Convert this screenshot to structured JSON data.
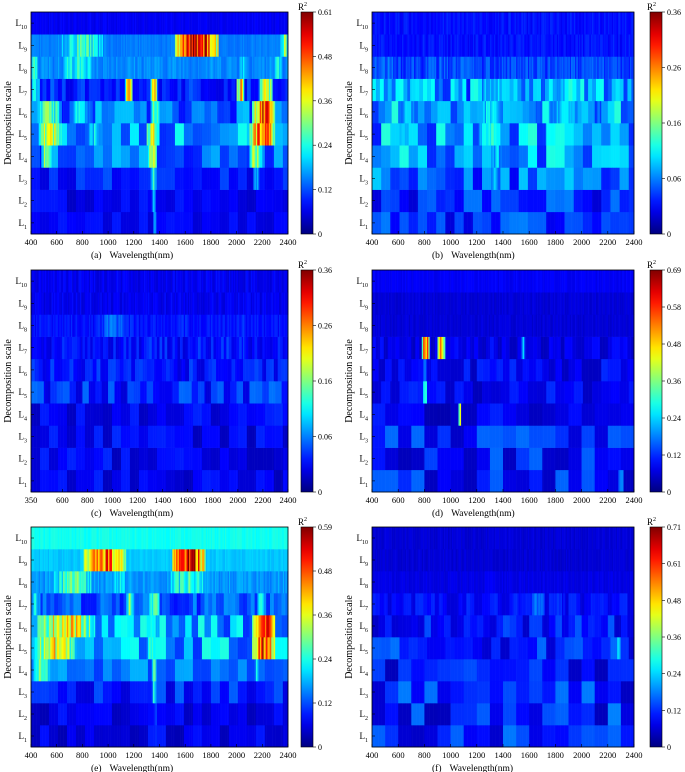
{
  "figure": {
    "y_axis_label": "Decomposition scale",
    "x_axis_label": "Wavelength(nm)",
    "colorbar_label": "R",
    "colorbar_label_sup": "2",
    "scale_label_prefix": "L",
    "scale_labels": [
      "1",
      "2",
      "3",
      "4",
      "5",
      "6",
      "7",
      "8",
      "9",
      "10"
    ]
  },
  "chart_data": [
    {
      "id": "a",
      "type": "heatmap",
      "caption": "(a)",
      "xlabel": "Wavelength(nm)",
      "ylabel": "Decomposition scale",
      "xlim": [
        400,
        2400
      ],
      "x_ticks": [
        400,
        600,
        800,
        1000,
        1200,
        1400,
        1600,
        1800,
        2000,
        2200,
        2400
      ],
      "rows": [
        "L1",
        "L2",
        "L3",
        "L4",
        "L5",
        "L6",
        "L7",
        "L8",
        "L9",
        "L10"
      ],
      "colorbar_ticks": [
        "0",
        "0.12",
        "0.24",
        "0.36",
        "0.48",
        "0.61"
      ],
      "zmax": 0.61,
      "rows_data": [
        {
          "base": 0.05,
          "features": [
            [
              1355,
              1375,
              0.25
            ]
          ],
          "noise": 0.02,
          "stripes": 3
        },
        {
          "base": 0.04,
          "features": [
            [
              1340,
              1370,
              0.2
            ]
          ],
          "noise": 0.03,
          "stripes": 3
        },
        {
          "base": 0.05,
          "features": [
            [
              1330,
              1380,
              0.26
            ],
            [
              2130,
              2180,
              0.18
            ]
          ],
          "noise": 0.04,
          "stripes": 3
        },
        {
          "base": 0.08,
          "features": [
            [
              480,
              560,
              0.3
            ],
            [
              1310,
              1380,
              0.34
            ],
            [
              2100,
              2200,
              0.32
            ]
          ],
          "noise": 0.06,
          "stripes": 3
        },
        {
          "base": 0.1,
          "features": [
            [
              460,
              640,
              0.36
            ],
            [
              840,
              960,
              0.22
            ],
            [
              1300,
              1400,
              0.38
            ],
            [
              2100,
              2300,
              0.5
            ]
          ],
          "noise": 0.07,
          "stripes": 3
        },
        {
          "base": 0.08,
          "features": [
            [
              450,
              640,
              0.28
            ],
            [
              700,
              880,
              0.22
            ],
            [
              1330,
              1400,
              0.3
            ],
            [
              2120,
              2300,
              0.48
            ]
          ],
          "noise": 0.06,
          "stripes": 4
        },
        {
          "base": 0.06,
          "features": [
            [
              400,
              470,
              0.22
            ],
            [
              1130,
              1190,
              0.38
            ],
            [
              1330,
              1380,
              0.45
            ],
            [
              2000,
              2060,
              0.4
            ],
            [
              2180,
              2280,
              0.36
            ]
          ],
          "noise": 0.04,
          "stripes": 6
        },
        {
          "base": 0.14,
          "features": [
            [
              400,
              460,
              0.24
            ],
            [
              600,
              920,
              0.24
            ],
            [
              2000,
              2100,
              0.2
            ],
            [
              2280,
              2360,
              0.22
            ]
          ],
          "noise": 0.02,
          "stripes": 20
        },
        {
          "base": 0.14,
          "features": [
            [
              600,
              1000,
              0.26
            ],
            [
              1520,
              1860,
              0.58
            ],
            [
              2340,
              2400,
              0.3
            ]
          ],
          "noise": 0.01,
          "stripes": 40
        },
        {
          "base": 0.06,
          "features": [],
          "noise": 0.01,
          "stripes": 60
        }
      ]
    },
    {
      "id": "b",
      "type": "heatmap",
      "caption": "(b)",
      "xlabel": "Wavelength(nm)",
      "ylabel": "Decomposition scale",
      "xlim": [
        400,
        2400
      ],
      "x_ticks": [
        400,
        600,
        800,
        1000,
        1200,
        1400,
        1600,
        1800,
        2000,
        2200,
        2400
      ],
      "rows": [
        "L1",
        "L2",
        "L3",
        "L4",
        "L5",
        "L6",
        "L7",
        "L8",
        "L9",
        "L10"
      ],
      "colorbar_ticks": [
        "0",
        "0.06",
        "0.16",
        "0.26",
        "0.36"
      ],
      "zmax": 0.36,
      "rows_data": [
        {
          "base": 0.03,
          "features": [],
          "noise": 0.03,
          "stripes": 3
        },
        {
          "base": 0.03,
          "features": [],
          "noise": 0.03,
          "stripes": 3
        },
        {
          "base": 0.04,
          "features": [
            [
              1290,
              1400,
              0.1
            ]
          ],
          "noise": 0.04,
          "stripes": 3
        },
        {
          "base": 0.05,
          "features": [
            [
              1290,
              1400,
              0.12
            ]
          ],
          "noise": 0.05,
          "stripes": 3
        },
        {
          "base": 0.05,
          "features": [
            [
              560,
              720,
              0.1
            ],
            [
              1200,
              1400,
              0.14
            ],
            [
              1700,
              1900,
              0.1
            ]
          ],
          "noise": 0.05,
          "stripes": 3
        },
        {
          "base": 0.05,
          "features": [
            [
              560,
              760,
              0.1
            ],
            [
              1200,
              1400,
              0.12
            ],
            [
              1600,
              2200,
              0.1
            ]
          ],
          "noise": 0.05,
          "stripes": 4
        },
        {
          "base": 0.05,
          "features": [
            [
              560,
              880,
              0.1
            ],
            [
              1200,
              1480,
              0.12
            ],
            [
              1680,
              2100,
              0.1
            ]
          ],
          "noise": 0.05,
          "stripes": 8
        },
        {
          "base": 0.05,
          "features": [
            [
              420,
              600,
              0.08
            ],
            [
              1000,
              1240,
              0.07
            ],
            [
              1600,
              2400,
              0.07
            ]
          ],
          "noise": 0.02,
          "stripes": 16
        },
        {
          "base": 0.04,
          "features": [],
          "noise": 0.01,
          "stripes": 40
        },
        {
          "base": 0.04,
          "features": [],
          "noise": 0.01,
          "stripes": 60
        }
      ]
    },
    {
      "id": "c",
      "type": "heatmap",
      "caption": "(c)",
      "xlabel": "Wavelength(nm)",
      "ylabel": "Decomposition scale",
      "xlim": [
        350,
        2400
      ],
      "x_ticks": [
        350,
        600,
        800,
        1000,
        1200,
        1400,
        1600,
        1800,
        2000,
        2200,
        2400
      ],
      "rows": [
        "L1",
        "L2",
        "L3",
        "L4",
        "L5",
        "L6",
        "L7",
        "L8",
        "L9",
        "L10"
      ],
      "colorbar_ticks": [
        "0",
        "0.06",
        "0.16",
        "0.26",
        "0.36"
      ],
      "zmax": 0.36,
      "rows_data": [
        {
          "base": 0.02,
          "features": [],
          "noise": 0.02,
          "stripes": 3
        },
        {
          "base": 0.02,
          "features": [],
          "noise": 0.02,
          "stripes": 3
        },
        {
          "base": 0.02,
          "features": [],
          "noise": 0.02,
          "stripes": 3
        },
        {
          "base": 0.02,
          "features": [],
          "noise": 0.02,
          "stripes": 3
        },
        {
          "base": 0.03,
          "features": [
            [
              400,
              600,
              0.04
            ],
            [
              1500,
              1800,
              0.04
            ]
          ],
          "noise": 0.03,
          "stripes": 4
        },
        {
          "base": 0.03,
          "features": [
            [
              400,
              700,
              0.04
            ]
          ],
          "noise": 0.02,
          "stripes": 6
        },
        {
          "base": 0.03,
          "features": [
            [
              420,
              900,
              0.04
            ],
            [
              2000,
              2100,
              0.06
            ]
          ],
          "noise": 0.02,
          "stripes": 10
        },
        {
          "base": 0.04,
          "features": [
            [
              860,
              1180,
              0.08
            ],
            [
              1500,
              1620,
              0.06
            ],
            [
              1960,
              2080,
              0.06
            ]
          ],
          "noise": 0.01,
          "stripes": 20
        },
        {
          "base": 0.03,
          "features": [],
          "noise": 0.01,
          "stripes": 40
        },
        {
          "base": 0.03,
          "features": [],
          "noise": 0.01,
          "stripes": 60
        }
      ]
    },
    {
      "id": "d",
      "type": "heatmap",
      "caption": "(d)",
      "xlabel": "Wavelength(nm)",
      "ylabel": "Decomposition scale",
      "xlim": [
        400,
        2400
      ],
      "x_ticks": [
        400,
        600,
        800,
        1000,
        1200,
        1400,
        1600,
        1800,
        2000,
        2200,
        2400
      ],
      "rows": [
        "L1",
        "L2",
        "L3",
        "L4",
        "L5",
        "L6",
        "L7",
        "L8",
        "L9",
        "L10"
      ],
      "colorbar_ticks": [
        "0",
        "0.12",
        "0.24",
        "0.36",
        "0.48",
        "0.58",
        "0.69"
      ],
      "zmax": 0.69,
      "rows_data": [
        {
          "base": 0.04,
          "features": [
            [
              2280,
              2320,
              0.2
            ]
          ],
          "noise": 0.06,
          "stripes": 2
        },
        {
          "base": 0.04,
          "features": [],
          "noise": 0.06,
          "stripes": 2
        },
        {
          "base": 0.04,
          "features": [
            [
              1400,
              1500,
              0.08
            ]
          ],
          "noise": 0.06,
          "stripes": 2
        },
        {
          "base": 0.03,
          "features": [
            [
              1060,
              1080,
              0.4
            ]
          ],
          "noise": 0.04,
          "stripes": 2
        },
        {
          "base": 0.04,
          "features": [
            [
              790,
              820,
              0.3
            ]
          ],
          "noise": 0.04,
          "stripes": 3
        },
        {
          "base": 0.04,
          "features": [
            [
              790,
              820,
              0.2
            ]
          ],
          "noise": 0.04,
          "stripes": 4
        },
        {
          "base": 0.04,
          "features": [
            [
              780,
              840,
              0.6
            ],
            [
              900,
              960,
              0.45
            ],
            [
              1540,
              1570,
              0.2
            ]
          ],
          "noise": 0.03,
          "stripes": 8
        },
        {
          "base": 0.05,
          "features": [],
          "noise": 0.01,
          "stripes": 20
        },
        {
          "base": 0.05,
          "features": [],
          "noise": 0.01,
          "stripes": 40
        },
        {
          "base": 0.07,
          "features": [
            [
              400,
              800,
              0.06
            ]
          ],
          "noise": 0.01,
          "stripes": 60
        }
      ]
    },
    {
      "id": "e",
      "type": "heatmap",
      "caption": "(e)",
      "xlabel": "Wavelength(nm)",
      "ylabel": "Decomposition scale",
      "xlim": [
        400,
        2400
      ],
      "x_ticks": [
        400,
        600,
        800,
        1000,
        1200,
        1400,
        1600,
        1800,
        2000,
        2200,
        2400
      ],
      "rows": [
        "L1",
        "L2",
        "L3",
        "L4",
        "L5",
        "L6",
        "L7",
        "L8",
        "L9",
        "L10"
      ],
      "colorbar_ticks": [
        "0",
        "0.12",
        "0.24",
        "0.36",
        "0.48",
        "0.59"
      ],
      "zmax": 0.59,
      "rows_data": [
        {
          "base": 0.03,
          "features": [
            [
              1360,
              1380,
              0.12
            ]
          ],
          "noise": 0.03,
          "stripes": 3
        },
        {
          "base": 0.03,
          "features": [
            [
              1360,
              1380,
              0.14
            ]
          ],
          "noise": 0.03,
          "stripes": 3
        },
        {
          "base": 0.05,
          "features": [
            [
              1340,
              1380,
              0.22
            ]
          ],
          "noise": 0.04,
          "stripes": 3
        },
        {
          "base": 0.08,
          "features": [
            [
              420,
              560,
              0.28
            ],
            [
              1340,
              1380,
              0.24
            ],
            [
              2140,
              2180,
              0.2
            ]
          ],
          "noise": 0.05,
          "stripes": 3
        },
        {
          "base": 0.1,
          "features": [
            [
              420,
              760,
              0.36
            ],
            [
              1300,
              1400,
              0.26
            ],
            [
              2120,
              2300,
              0.52
            ]
          ],
          "noise": 0.07,
          "stripes": 3
        },
        {
          "base": 0.1,
          "features": [
            [
              440,
              900,
              0.38
            ],
            [
              1300,
              1400,
              0.24
            ],
            [
              2120,
              2300,
              0.5
            ]
          ],
          "noise": 0.07,
          "stripes": 4
        },
        {
          "base": 0.08,
          "features": [
            [
              400,
              480,
              0.2
            ],
            [
              1140,
              1200,
              0.3
            ],
            [
              1320,
              1400,
              0.3
            ],
            [
              2160,
              2220,
              0.3
            ]
          ],
          "noise": 0.04,
          "stripes": 6
        },
        {
          "base": 0.14,
          "features": [
            [
              560,
              900,
              0.28
            ],
            [
              1000,
              1200,
              0.2
            ],
            [
              1440,
              1800,
              0.24
            ]
          ],
          "noise": 0.02,
          "stripes": 20
        },
        {
          "base": 0.18,
          "features": [
            [
              800,
              1140,
              0.46
            ],
            [
              1500,
              1760,
              0.56
            ]
          ],
          "noise": 0.01,
          "stripes": 40
        },
        {
          "base": 0.22,
          "features": [
            [
              400,
              1000,
              0.08
            ]
          ],
          "noise": 0.01,
          "stripes": 60
        }
      ]
    },
    {
      "id": "f",
      "type": "heatmap",
      "caption": "(f)",
      "xlabel": "Wavelength(nm)",
      "ylabel": "Decomposition scale",
      "xlim": [
        400,
        2400
      ],
      "x_ticks": [
        400,
        600,
        800,
        1000,
        1200,
        1400,
        1600,
        1800,
        2000,
        2200,
        2400
      ],
      "rows": [
        "L1",
        "L2",
        "L3",
        "L4",
        "L5",
        "L6",
        "L7",
        "L8",
        "L9",
        "L10"
      ],
      "colorbar_ticks": [
        "0",
        "0.12",
        "0.24",
        "0.36",
        "0.48",
        "0.61",
        "0.71"
      ],
      "zmax": 0.71,
      "rows_data": [
        {
          "base": 0.04,
          "features": [],
          "noise": 0.07,
          "stripes": 2
        },
        {
          "base": 0.04,
          "features": [],
          "noise": 0.07,
          "stripes": 2
        },
        {
          "base": 0.04,
          "features": [],
          "noise": 0.07,
          "stripes": 2
        },
        {
          "base": 0.04,
          "features": [],
          "noise": 0.06,
          "stripes": 2
        },
        {
          "base": 0.05,
          "features": [
            [
              2260,
              2300,
              0.28
            ]
          ],
          "noise": 0.06,
          "stripes": 3
        },
        {
          "base": 0.05,
          "features": [
            [
              1300,
              1400,
              0.06
            ]
          ],
          "noise": 0.05,
          "stripes": 4
        },
        {
          "base": 0.06,
          "features": [
            [
              1440,
              1560,
              0.1
            ],
            [
              1600,
              1720,
              0.18
            ],
            [
              1760,
              1880,
              0.12
            ],
            [
              2000,
              2140,
              0.1
            ]
          ],
          "noise": 0.03,
          "stripes": 8
        },
        {
          "base": 0.06,
          "features": [
            [
              1200,
              1380,
              0.08
            ],
            [
              1500,
              1600,
              0.06
            ]
          ],
          "noise": 0.01,
          "stripes": 20
        },
        {
          "base": 0.05,
          "features": [],
          "noise": 0.01,
          "stripes": 40
        },
        {
          "base": 0.05,
          "features": [],
          "noise": 0.01,
          "stripes": 60
        }
      ]
    }
  ]
}
